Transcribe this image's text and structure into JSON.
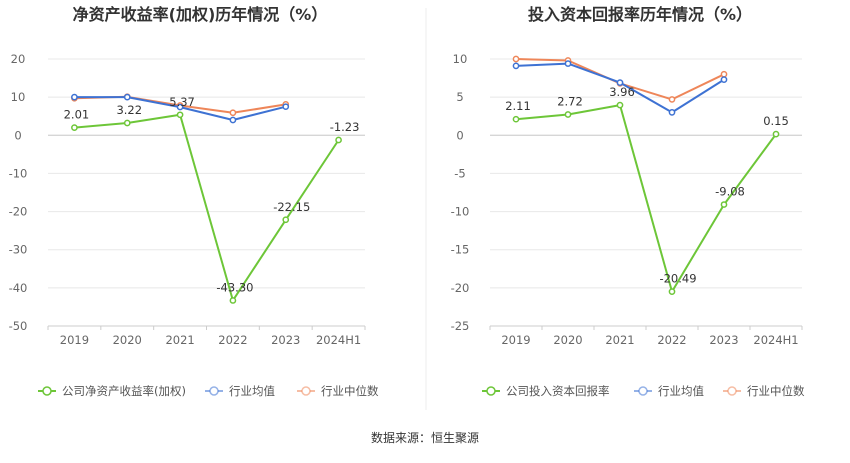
{
  "source": "数据来源：恒生聚源",
  "colors": {
    "company": "#6dc638",
    "average": "#3e72d3",
    "median": "#ee8659",
    "grid": "#e8e8e8",
    "axis": "#cccccc"
  },
  "chart_data": [
    {
      "type": "line",
      "title": "净资产收益率(加权)历年情况（%）",
      "categories": [
        "2019",
        "2020",
        "2021",
        "2022",
        "2023",
        "2024H1"
      ],
      "ylim": [
        -50,
        20
      ],
      "yticks": [
        20,
        10,
        0,
        -10,
        -20,
        -30,
        -40,
        -50
      ],
      "grid": true,
      "legend_position": "bottom",
      "series": [
        {
          "name": "公司净资产收益率(加权)",
          "values": [
            2.01,
            3.22,
            5.37,
            -43.3,
            -22.15,
            -1.23
          ],
          "labels": [
            "2.01",
            "3.22",
            "5.37",
            "-43.30",
            "-22.15",
            "-1.23"
          ]
        },
        {
          "name": "行业均值",
          "values": [
            10.0,
            10.0,
            7.4,
            4.0,
            7.5,
            null
          ]
        },
        {
          "name": "行业中位数",
          "values": [
            9.7,
            10.1,
            7.8,
            5.9,
            8.1,
            null
          ]
        }
      ]
    },
    {
      "type": "line",
      "title": "投入资本回报率历年情况（%）",
      "categories": [
        "2019",
        "2020",
        "2021",
        "2022",
        "2023",
        "2024H1"
      ],
      "ylim": [
        -25,
        10
      ],
      "yticks": [
        10,
        5,
        0,
        -5,
        -10,
        -15,
        -20,
        -25
      ],
      "grid": true,
      "legend_position": "bottom",
      "series": [
        {
          "name": "公司投入资本回报率",
          "values": [
            2.11,
            2.72,
            3.96,
            -20.49,
            -9.08,
            0.15
          ],
          "labels": [
            "2.11",
            "2.72",
            "3.96",
            "-20.49",
            "-9.08",
            "0.15"
          ]
        },
        {
          "name": "行业均值",
          "values": [
            9.1,
            9.4,
            6.9,
            3.0,
            7.3,
            null
          ]
        },
        {
          "name": "行业中位数",
          "values": [
            10.0,
            9.8,
            6.8,
            4.7,
            8.0,
            null
          ]
        }
      ]
    }
  ]
}
